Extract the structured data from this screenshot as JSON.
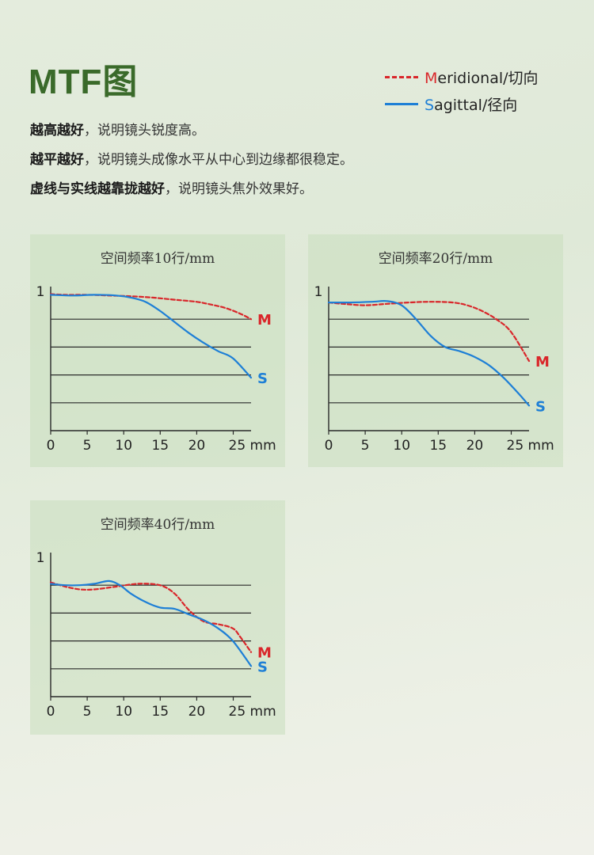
{
  "header": {
    "title": "MTF图",
    "legend": [
      {
        "first": "M",
        "rest": "eridional/切向",
        "style": "dashed",
        "color": "#d9262a"
      },
      {
        "first": "S",
        "rest": "agittal/径向",
        "style": "solid",
        "color": "#1e7fd6"
      }
    ]
  },
  "notes": [
    {
      "em": "越高越好",
      "text": "，说明镜头锐度高。"
    },
    {
      "em": "越平越好",
      "text": "，说明镜头成像水平从中心到边缘都很稳定。"
    },
    {
      "em": "虚线与实线越靠拢越好",
      "text": "，说明镜头焦外效果好。"
    }
  ],
  "chart_data": [
    {
      "type": "line",
      "title": "空间频率10行/mm",
      "x_ticks": [
        "0",
        "5",
        "10",
        "15",
        "20",
        "25 mm"
      ],
      "y_ticks": [
        "1"
      ],
      "xlim": [
        0,
        27.5
      ],
      "ylim": [
        0,
        1
      ],
      "grid": "horizontal",
      "series": [
        {
          "name": "M",
          "color": "#d9262a",
          "style": "dashed",
          "x": [
            0,
            2,
            5,
            8,
            11,
            14,
            17,
            20,
            22,
            24,
            26,
            27.5
          ],
          "y": [
            0.98,
            0.975,
            0.975,
            0.97,
            0.965,
            0.955,
            0.94,
            0.925,
            0.905,
            0.88,
            0.84,
            0.8
          ]
        },
        {
          "name": "S",
          "color": "#1e7fd6",
          "style": "solid",
          "x": [
            0,
            3,
            6,
            9,
            11,
            13,
            15,
            17,
            19,
            21,
            23,
            25,
            27.5
          ],
          "y": [
            0.975,
            0.97,
            0.975,
            0.97,
            0.955,
            0.925,
            0.86,
            0.78,
            0.7,
            0.63,
            0.57,
            0.52,
            0.38
          ]
        }
      ]
    },
    {
      "type": "line",
      "title": "空间频率20行/mm",
      "x_ticks": [
        "0",
        "5",
        "10",
        "15",
        "20",
        "25 mm"
      ],
      "y_ticks": [
        "1"
      ],
      "xlim": [
        0,
        27.5
      ],
      "ylim": [
        0,
        1
      ],
      "grid": "horizontal",
      "series": [
        {
          "name": "M",
          "color": "#d9262a",
          "style": "dashed",
          "x": [
            0,
            2,
            5,
            8,
            11,
            14,
            17,
            19,
            21,
            23,
            25,
            27.5
          ],
          "y": [
            0.92,
            0.91,
            0.9,
            0.91,
            0.92,
            0.925,
            0.92,
            0.9,
            0.86,
            0.8,
            0.71,
            0.5
          ]
        },
        {
          "name": "S",
          "color": "#1e7fd6",
          "style": "solid",
          "x": [
            0,
            3,
            6,
            8,
            10,
            12,
            14,
            16,
            18,
            20,
            22,
            24,
            26,
            27.5
          ],
          "y": [
            0.92,
            0.92,
            0.925,
            0.93,
            0.9,
            0.8,
            0.68,
            0.6,
            0.57,
            0.53,
            0.47,
            0.38,
            0.27,
            0.18
          ]
        }
      ]
    },
    {
      "type": "line",
      "title": "空间频率40行/mm",
      "x_ticks": [
        "0",
        "5",
        "10",
        "15",
        "20",
        "25 mm"
      ],
      "y_ticks": [
        "1"
      ],
      "xlim": [
        0,
        27.5
      ],
      "ylim": [
        0,
        1
      ],
      "grid": "horizontal",
      "series": [
        {
          "name": "M",
          "color": "#d9262a",
          "style": "dashed",
          "x": [
            0,
            2,
            4,
            6,
            9,
            12,
            15,
            17,
            19,
            21,
            23,
            25,
            26,
            27.5
          ],
          "y": [
            0.82,
            0.79,
            0.77,
            0.77,
            0.79,
            0.81,
            0.8,
            0.74,
            0.62,
            0.54,
            0.52,
            0.49,
            0.43,
            0.32
          ]
        },
        {
          "name": "S",
          "color": "#1e7fd6",
          "style": "solid",
          "x": [
            0,
            2,
            4,
            6,
            8,
            9.5,
            11,
            13,
            15,
            17,
            19,
            21,
            23,
            25,
            27.5
          ],
          "y": [
            0.81,
            0.8,
            0.8,
            0.81,
            0.83,
            0.8,
            0.74,
            0.68,
            0.64,
            0.63,
            0.59,
            0.55,
            0.49,
            0.4,
            0.22
          ]
        }
      ]
    }
  ]
}
